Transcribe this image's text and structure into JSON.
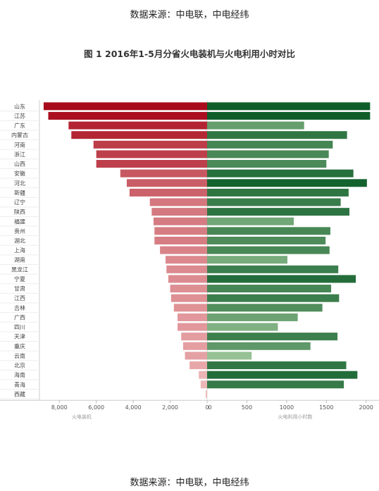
{
  "source_top": "数据来源：中电联，中电经纬",
  "title": "图 1 2016年1-5月分省火电装机与火电利用小时对比",
  "source_bottom": "数据来源：中电联，中电经纬",
  "chart_data": {
    "type": "bar",
    "orientation": "horizontal",
    "categories": [
      "山东",
      "江苏",
      "广东",
      "内蒙古",
      "河南",
      "浙江",
      "山西",
      "安徽",
      "河北",
      "新疆",
      "辽宁",
      "陕西",
      "福建",
      "贵州",
      "湖北",
      "上海",
      "湖南",
      "黑龙江",
      "宁夏",
      "甘肃",
      "江西",
      "吉林",
      "广西",
      "四川",
      "天津",
      "重庆",
      "云南",
      "北京",
      "海南",
      "青海",
      "西藏"
    ],
    "series": [
      {
        "axis_label": "火电装机",
        "values": [
          8850,
          8600,
          7500,
          7350,
          6150,
          6000,
          6000,
          4700,
          4350,
          4200,
          3100,
          3000,
          2900,
          2850,
          2850,
          2550,
          2250,
          2200,
          2100,
          2000,
          1950,
          1800,
          1600,
          1600,
          1400,
          1300,
          1200,
          950,
          450,
          350,
          80
        ],
        "color_from": "#f2c2c2",
        "color_to": "#a80c1c",
        "xlim": [
          0,
          9000
        ],
        "ticks": [
          8000,
          6000,
          4000,
          2000,
          0
        ],
        "tick_labels": [
          "8,000",
          "6,000",
          "4,000",
          "2,000",
          "0"
        ]
      },
      {
        "axis_label": "火电利用小时数",
        "values": [
          2050,
          2050,
          1220,
          1760,
          1580,
          1530,
          1500,
          1840,
          2010,
          1780,
          1680,
          1790,
          1090,
          1550,
          1490,
          1540,
          1010,
          1650,
          1870,
          1560,
          1660,
          1450,
          1140,
          890,
          1640,
          1300,
          560,
          1750,
          1890,
          1720,
          0
        ],
        "color_from": "#a9cfa3",
        "color_to": "#0f5e2a",
        "xlim": [
          0,
          2100
        ],
        "ticks": [
          0,
          500,
          1000,
          1500,
          2000
        ],
        "tick_labels": [
          "0",
          "500",
          "1000",
          "1500",
          "2000"
        ]
      }
    ],
    "grid": true
  }
}
